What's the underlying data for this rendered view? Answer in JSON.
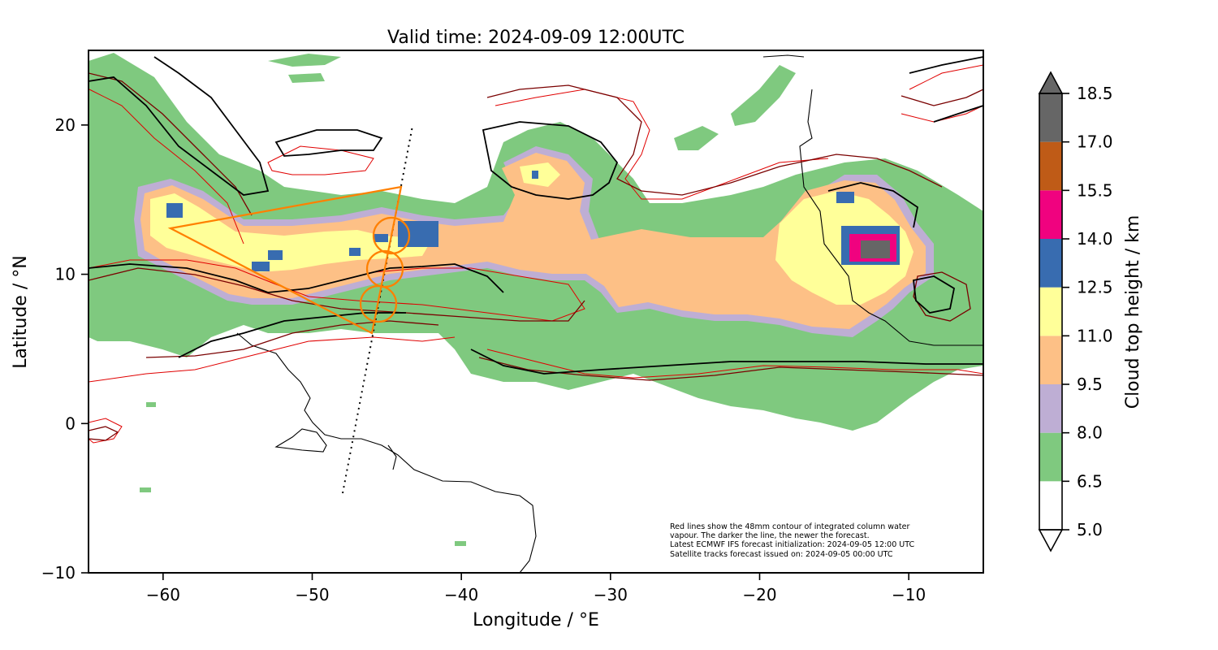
{
  "title": "Valid time: 2024-09-09 12:00UTC",
  "xlabel": "Longitude / °E",
  "ylabel": "Latitude / °N",
  "xticks": [
    {
      "value": -60,
      "label": "−60"
    },
    {
      "value": -50,
      "label": "−50"
    },
    {
      "value": -40,
      "label": "−40"
    },
    {
      "value": -30,
      "label": "−30"
    },
    {
      "value": -20,
      "label": "−20"
    },
    {
      "value": -10,
      "label": "−10"
    }
  ],
  "yticks": [
    {
      "value": 20,
      "label": "20"
    },
    {
      "value": 10,
      "label": "10"
    },
    {
      "value": 0,
      "label": "0"
    },
    {
      "value": -10,
      "label": "−10"
    }
  ],
  "annotation": [
    "Red lines show the 48mm contour of integrated column water",
    "vapour. The darker the line, the newer the forecast.",
    "Latest ECMWF IFS forecast initialization: 2024-09-05 12:00 UTC",
    "Satellite tracks forecast issued on: 2024-09-05 00:00 UTC"
  ],
  "colorbar": {
    "label": "Cloud top height / km",
    "levels": [
      {
        "value": 5.0,
        "label": "5.0"
      },
      {
        "value": 6.5,
        "label": "6.5"
      },
      {
        "value": 8.0,
        "label": "8.0"
      },
      {
        "value": 9.5,
        "label": "9.5"
      },
      {
        "value": 11.0,
        "label": "11.0"
      },
      {
        "value": 12.5,
        "label": "12.5"
      },
      {
        "value": 14.0,
        "label": "14.0"
      },
      {
        "value": 15.5,
        "label": "15.5"
      },
      {
        "value": 17.0,
        "label": "17.0"
      },
      {
        "value": 18.5,
        "label": "18.5"
      }
    ],
    "colors": [
      "#ffffff",
      "#7fc97f",
      "#beaed4",
      "#fdc086",
      "#ffff99",
      "#386cb0",
      "#f0027f",
      "#bf5b17",
      "#666666"
    ],
    "extend": "both"
  },
  "chart_data": {
    "type": "map",
    "xlim": [
      -65,
      -5
    ],
    "ylim": [
      -10,
      25
    ],
    "grid": false,
    "satellite_track": [
      [
        -48.0,
        -4.8
      ],
      [
        -43.3,
        20.0
      ]
    ],
    "flight_polygon": [
      [
        -59.5,
        13.2
      ],
      [
        -44.0,
        16.0
      ],
      [
        -46.0,
        6.0
      ],
      [
        -59.5,
        13.2
      ]
    ],
    "circles": [
      {
        "center": [
          -44.7,
          12.5
        ],
        "radius_deg": 1.2
      },
      {
        "center": [
          -45.1,
          10.5
        ],
        "radius_deg": 1.2
      },
      {
        "center": [
          -45.5,
          8.4
        ],
        "radius_deg": 1.2
      }
    ],
    "line_colors": {
      "track": "#000000",
      "flight": "#ff8000",
      "coast": "#000000",
      "iwv_latest": "#000000",
      "iwv_older": "#7a0000",
      "iwv_oldest": "#e00000"
    }
  }
}
